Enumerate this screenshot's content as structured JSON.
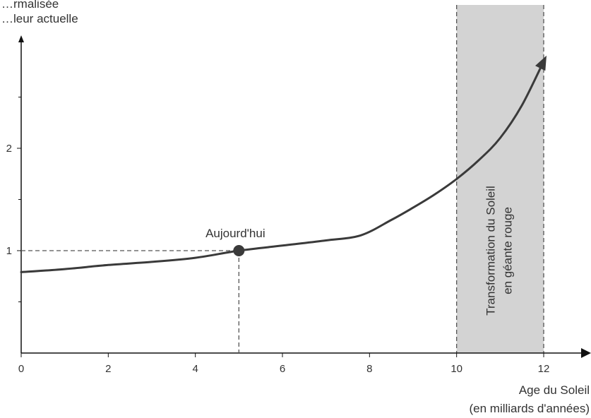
{
  "chart_data": {
    "type": "line",
    "title": "",
    "ylabel_lines": [
      "…rmalisée",
      "…leur actuelle"
    ],
    "xlabel_lines": [
      "Age du Soleil",
      "(en milliards d'années)"
    ],
    "xlim": [
      0,
      12
    ],
    "ylim": [
      0,
      2.9
    ],
    "x_ticks": [
      0,
      2,
      4,
      6,
      8,
      10,
      12
    ],
    "y_ticks": [
      1,
      2
    ],
    "y_minor_ticks": [
      0.5,
      1.5,
      2.5
    ],
    "grid": false,
    "series": [
      {
        "x": [
          0,
          1,
          2,
          3,
          4,
          5,
          6,
          7,
          7.8,
          8.5,
          9,
          9.5,
          10,
          10.5,
          11,
          11.5,
          12
        ],
        "values": [
          0.79,
          0.82,
          0.86,
          0.89,
          0.93,
          1.0,
          1.05,
          1.1,
          1.15,
          1.3,
          1.42,
          1.55,
          1.7,
          1.88,
          2.1,
          2.42,
          2.85
        ]
      }
    ],
    "annotations": [
      {
        "text": "Aujourd'hui",
        "x": 5,
        "y": 1
      }
    ],
    "shaded_region": {
      "x_start": 10,
      "x_end": 12,
      "color": "#d3d3d3",
      "label_lines": [
        "Transformation du Soleil",
        "en géante rouge"
      ]
    },
    "colors": {
      "line": "#3a3a3a",
      "axis": "#111111",
      "guide": "#555555"
    }
  }
}
